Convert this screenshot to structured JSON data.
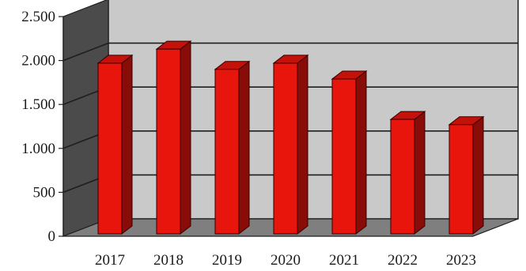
{
  "chart_data": {
    "type": "bar",
    "style": "3d",
    "categories": [
      "2017",
      "2018",
      "2019",
      "2020",
      "2021",
      "2022",
      "2023"
    ],
    "values": [
      1970,
      2130,
      1900,
      1970,
      1790,
      1330,
      1270
    ],
    "ylim": [
      0,
      2500
    ],
    "yticks": [
      0,
      500,
      1000,
      1500,
      2000,
      2500
    ],
    "ytick_labels": [
      "0",
      "500",
      "1.000",
      "1.500",
      "2.000",
      "2.500"
    ],
    "grid": true,
    "legend": "none",
    "colors": {
      "bar_front": "#e8150c",
      "bar_side": "#8a0c08",
      "bar_top": "#c4120b",
      "back_wall": "#c9c9c9",
      "side_wall": "#4b4b4b",
      "floor": "#7f7f7f",
      "grid": "#1e1e1e"
    }
  }
}
